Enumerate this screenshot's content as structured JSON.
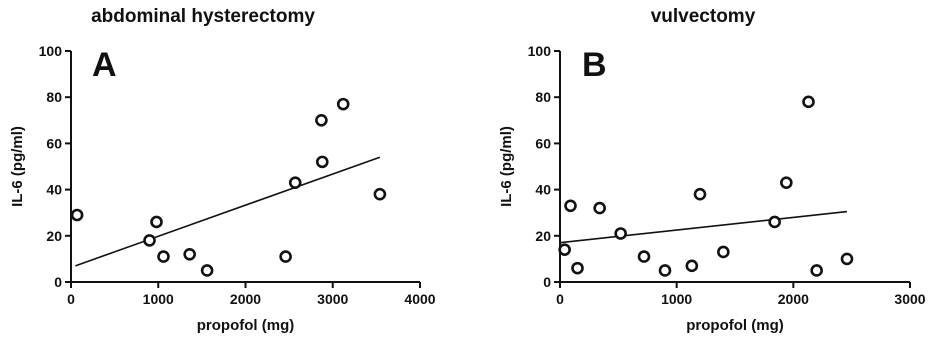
{
  "chart_data": [
    {
      "type": "scatter",
      "title": "abdominal hysterectomy",
      "panel_label": "A",
      "xlabel": "propofol (mg)",
      "ylabel": "IL-6 (pg/ml)",
      "xlim": [
        0,
        4000
      ],
      "ylim": [
        0,
        100
      ],
      "xticks": [
        0,
        1000,
        2000,
        3000,
        4000
      ],
      "yticks": [
        0,
        20,
        40,
        60,
        80,
        100
      ],
      "grid": false,
      "marker_color": "#111111",
      "points": [
        {
          "x": 70,
          "y": 29
        },
        {
          "x": 900,
          "y": 18
        },
        {
          "x": 980,
          "y": 26
        },
        {
          "x": 1060,
          "y": 11
        },
        {
          "x": 1360,
          "y": 12
        },
        {
          "x": 1560,
          "y": 5
        },
        {
          "x": 2460,
          "y": 11
        },
        {
          "x": 2570,
          "y": 43
        },
        {
          "x": 2870,
          "y": 70
        },
        {
          "x": 2880,
          "y": 52
        },
        {
          "x": 3120,
          "y": 77
        },
        {
          "x": 3540,
          "y": 38
        }
      ],
      "regression_line": {
        "x": [
          50,
          3540
        ],
        "y": [
          7,
          54
        ]
      }
    },
    {
      "type": "scatter",
      "title": "vulvectomy",
      "panel_label": "B",
      "xlabel": "propofol (mg)",
      "ylabel": "IL-6 (pg/ml)",
      "xlim": [
        0,
        3000
      ],
      "ylim": [
        0,
        100
      ],
      "xticks": [
        0,
        1000,
        2000,
        3000
      ],
      "yticks": [
        0,
        20,
        40,
        60,
        80,
        100
      ],
      "grid": false,
      "marker_color": "#111111",
      "points": [
        {
          "x": 40,
          "y": 14
        },
        {
          "x": 90,
          "y": 33
        },
        {
          "x": 150,
          "y": 6
        },
        {
          "x": 340,
          "y": 32
        },
        {
          "x": 520,
          "y": 21
        },
        {
          "x": 720,
          "y": 11
        },
        {
          "x": 900,
          "y": 5
        },
        {
          "x": 1130,
          "y": 7
        },
        {
          "x": 1200,
          "y": 38
        },
        {
          "x": 1400,
          "y": 13
        },
        {
          "x": 1840,
          "y": 26
        },
        {
          "x": 1940,
          "y": 43
        },
        {
          "x": 2130,
          "y": 78
        },
        {
          "x": 2200,
          "y": 5
        },
        {
          "x": 2460,
          "y": 10
        }
      ],
      "regression_line": {
        "x": [
          0,
          2460
        ],
        "y": [
          17,
          30.5
        ]
      }
    }
  ]
}
